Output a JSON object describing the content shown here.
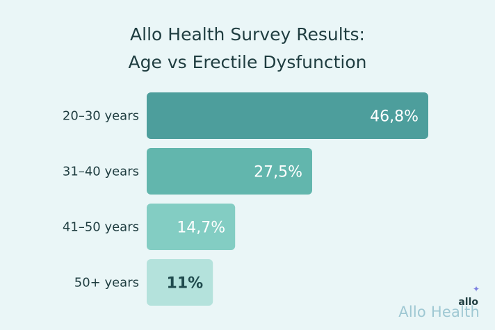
{
  "chart_data": {
    "type": "bar",
    "orientation": "horizontal",
    "title_line1": "Allo Health Survey Results:",
    "title_line2": "Age vs Erectile Dysfunction",
    "categories": [
      "20–30 years",
      "31–40 years",
      "41–50 years",
      "50+ years"
    ],
    "values": [
      46.8,
      27.5,
      14.7,
      11
    ],
    "value_labels": [
      "46,8%",
      "27,5%",
      "14,7%",
      "11%"
    ],
    "bar_colors": [
      "#4d9e9c",
      "#62b6ad",
      "#83cdc3",
      "#b4e2dc"
    ],
    "label_colors": [
      "#ffffff",
      "#ffffff",
      "#ffffff",
      "#1f4a4d"
    ],
    "xlim": [
      0,
      50
    ],
    "grid": false,
    "legend": "none"
  },
  "brand": {
    "logo": "allo",
    "watermark": "Allo Health"
  },
  "colors": {
    "background": "#eaf6f7",
    "title": "#1f3d40"
  }
}
